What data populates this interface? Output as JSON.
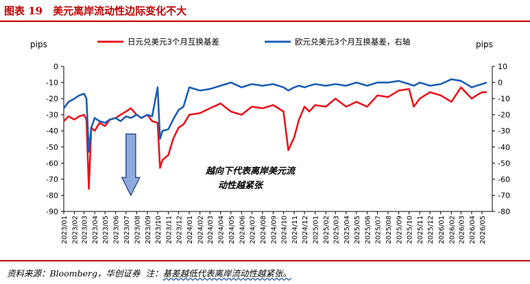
{
  "header": {
    "title": "图表 19　美元离岸流动性边际变化不大"
  },
  "footer": {
    "source": "资料来源：Bloomberg，华创证券",
    "note_label": "注：",
    "note": "基差越低代表离岸流动性越紧张。"
  },
  "colors": {
    "brand": "#c00000",
    "series_jpy": "#e8141c",
    "series_eur": "#1a5db5",
    "arrow_fill": "#8ea9db",
    "arrow_stroke": "#2f4f8f"
  },
  "chart_data": {
    "type": "line",
    "x_dates": [
      "2023-01-01",
      "2023-01-15",
      "2023-02-01",
      "2023-02-15",
      "2023-03-01",
      "2023-03-08",
      "2023-03-15",
      "2023-03-22",
      "2023-04-01",
      "2023-04-15",
      "2023-05-01",
      "2023-05-15",
      "2023-06-01",
      "2023-06-15",
      "2023-07-01",
      "2023-07-15",
      "2023-08-01",
      "2023-08-15",
      "2023-09-01",
      "2023-09-15",
      "2023-10-01",
      "2023-10-08",
      "2023-10-15",
      "2023-11-01",
      "2023-11-15",
      "2023-12-01",
      "2023-12-15",
      "2024-01-01",
      "2024-02-01",
      "2024-03-01",
      "2024-04-01",
      "2024-05-01",
      "2024-06-01",
      "2024-07-01",
      "2024-08-01",
      "2024-09-01",
      "2024-10-01",
      "2024-10-15",
      "2024-11-01",
      "2024-11-15",
      "2024-12-01",
      "2024-12-15",
      "2025-01-01",
      "2025-02-01",
      "2025-03-01",
      "2025-04-01",
      "2025-05-01",
      "2025-06-01",
      "2025-07-01",
      "2025-08-01",
      "2025-09-01",
      "2025-10-01",
      "2025-10-15",
      "2025-11-01",
      "2025-12-01",
      "2026-01-01",
      "2026-02-01",
      "2026-03-01",
      "2026-04-01",
      "2026-04-15",
      "2026-05-01",
      "2026-05-15"
    ],
    "series": [
      {
        "name": "日元兑美元3个月互换基差",
        "axis": "left",
        "values": [
          -34,
          -31,
          -33,
          -31,
          -30,
          -33,
          -76,
          -38,
          -40,
          -35,
          -37,
          -33,
          -32,
          -30,
          -28,
          -26,
          -30,
          -32,
          -30,
          -34,
          -35,
          -63,
          -58,
          -55,
          -45,
          -38,
          -36,
          -30,
          -29,
          -26,
          -23,
          -28,
          -30,
          -25,
          -26,
          -24,
          -28,
          -52,
          -44,
          -33,
          -25,
          -28,
          -24,
          -25,
          -20,
          -25,
          -22,
          -25,
          -18,
          -19,
          -15,
          -14,
          -25,
          -20,
          -16,
          -18,
          -22,
          -13,
          -20,
          -18,
          -16,
          -16
        ]
      },
      {
        "name": "欧元兑美元3个月互换基差，右轴",
        "axis": "right",
        "values": [
          -16,
          -12,
          -10,
          -8,
          -7,
          -10,
          -43,
          -28,
          -22,
          -24,
          -25,
          -23,
          -22,
          -24,
          -21,
          -22,
          -20,
          -22,
          -20,
          -21,
          -3,
          -35,
          -30,
          -29,
          -23,
          -17,
          -15,
          -3,
          -5,
          -4,
          -2,
          0,
          -3,
          -1,
          -2,
          -1,
          -3,
          -5,
          -3,
          -2,
          -3,
          -2,
          -1,
          -2,
          -1,
          -2,
          0,
          -2,
          0,
          0,
          1,
          -1,
          -2,
          0,
          -2,
          -1,
          2,
          1,
          -3,
          -2,
          -1,
          0
        ]
      }
    ],
    "x_tick_labels": [
      "2023/01",
      "2023/02",
      "2023/03",
      "2023/04",
      "2023/05",
      "2023/06",
      "2023/07",
      "2023/08",
      "2023/09",
      "2023/10",
      "2023/11",
      "2023/12",
      "2024/01",
      "2024/02",
      "2024/03",
      "2024/04",
      "2024/05",
      "2024/06",
      "2024/07",
      "2024/08",
      "2024/09",
      "2024/10",
      "2024/11",
      "2024/12",
      "2025/01",
      "2025/02",
      "2025/03",
      "2025/04",
      "2025/05",
      "2025/06",
      "2025/07",
      "2025/08",
      "2025/09",
      "2025/10",
      "2025/11",
      "2025/12",
      "2026/01",
      "2026/02",
      "2026/03",
      "2026/04",
      "2026/05"
    ],
    "y_left": {
      "label": "pips",
      "min": -90,
      "max": 0,
      "step": 10
    },
    "y_right": {
      "label": "pips",
      "min": -80,
      "max": 10,
      "step": 10
    },
    "legend_position": "top",
    "annotation": {
      "text_line1": "越向下代表离岸美元流",
      "text_line2": "动性越紧张",
      "arrow_date": "2023-07-15",
      "arrow_from": -42,
      "arrow_to": -80
    },
    "grid": false
  }
}
